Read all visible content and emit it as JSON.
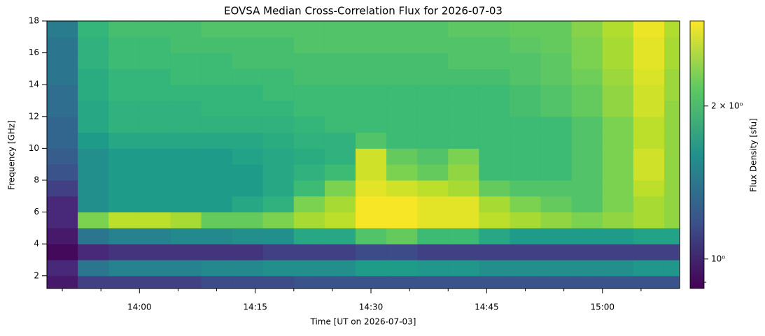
{
  "chart_data": {
    "type": "heatmap",
    "title": "EOVSA Median Cross-Correlation Flux for 2026-07-03",
    "xlabel": "Time [UT on 2026-07-03]",
    "ylabel": "Frequency [GHz]",
    "colorbar_label": "Flux Density [sfu]",
    "colormap": "viridis",
    "cscale": "log",
    "xlim": [
      "13:48",
      "15:10"
    ],
    "ylim": [
      1.2,
      18
    ],
    "xticks": [
      "14:00",
      "14:15",
      "14:30",
      "14:45",
      "15:00"
    ],
    "xminorticks": [
      "13:50",
      "13:55",
      "14:05",
      "14:10",
      "14:20",
      "14:25",
      "14:35",
      "14:40",
      "14:50",
      "14:55",
      "15:05"
    ],
    "yticks": [
      2,
      4,
      6,
      8,
      10,
      12,
      14,
      16,
      18
    ],
    "clim": [
      0.875,
      2.94
    ],
    "cticks": [
      {
        "value": 1,
        "label": "10⁰"
      },
      {
        "value": 2,
        "label": "2 × 10⁰"
      }
    ],
    "cminorticks": [
      0.9
    ],
    "x": [
      "13:48",
      "13:52",
      "13:56",
      "14:00",
      "14:04",
      "14:08",
      "14:12",
      "14:16",
      "14:20",
      "14:24",
      "14:28",
      "14:32",
      "14:36",
      "14:40",
      "14:44",
      "14:48",
      "14:52",
      "14:56",
      "15:00",
      "15:04",
      "15:08"
    ],
    "y": [
      1.2,
      2,
      3,
      4,
      5,
      6,
      7,
      8,
      9,
      10,
      11,
      12,
      13,
      14,
      15,
      16,
      17
    ],
    "z": [
      [
        0.95,
        1.1,
        1.1,
        1.1,
        1.1,
        1.15,
        1.15,
        1.15,
        1.2,
        1.2,
        1.2,
        1.2,
        1.2,
        1.2,
        1.2,
        1.2,
        1.2,
        1.2,
        1.2,
        1.2,
        1.2
      ],
      [
        1.0,
        1.4,
        1.5,
        1.5,
        1.5,
        1.55,
        1.55,
        1.6,
        1.6,
        1.6,
        1.7,
        1.7,
        1.65,
        1.65,
        1.6,
        1.6,
        1.6,
        1.6,
        1.6,
        1.65,
        1.65
      ],
      [
        0.9,
        1.0,
        1.05,
        1.05,
        1.05,
        1.05,
        1.05,
        1.1,
        1.1,
        1.1,
        1.15,
        1.15,
        1.1,
        1.1,
        1.1,
        1.1,
        1.1,
        1.1,
        1.1,
        1.1,
        1.1
      ],
      [
        0.95,
        1.4,
        1.5,
        1.5,
        1.55,
        1.55,
        1.6,
        1.6,
        1.8,
        1.8,
        2.1,
        2.2,
        2.0,
        2.0,
        1.8,
        1.7,
        1.7,
        1.7,
        1.7,
        1.75,
        1.75
      ],
      [
        1.0,
        2.3,
        2.6,
        2.6,
        2.5,
        2.2,
        2.2,
        2.3,
        2.5,
        2.6,
        2.9,
        2.9,
        2.8,
        2.8,
        2.6,
        2.5,
        2.4,
        2.3,
        2.4,
        2.5,
        2.4
      ],
      [
        1.0,
        1.6,
        1.7,
        1.7,
        1.7,
        1.7,
        1.8,
        1.9,
        2.3,
        2.5,
        2.9,
        2.9,
        2.8,
        2.8,
        2.5,
        2.3,
        2.2,
        2.1,
        2.3,
        2.5,
        2.4
      ],
      [
        1.1,
        1.6,
        1.7,
        1.7,
        1.7,
        1.7,
        1.7,
        1.8,
        2.0,
        2.3,
        2.8,
        2.7,
        2.6,
        2.5,
        2.2,
        2.1,
        2.1,
        2.1,
        2.3,
        2.6,
        2.4
      ],
      [
        1.2,
        1.6,
        1.7,
        1.7,
        1.7,
        1.7,
        1.7,
        1.8,
        1.9,
        2.0,
        2.7,
        2.3,
        2.2,
        2.4,
        2.0,
        2.0,
        2.0,
        2.1,
        2.3,
        2.7,
        2.4
      ],
      [
        1.25,
        1.6,
        1.7,
        1.7,
        1.7,
        1.7,
        1.75,
        1.8,
        1.85,
        1.9,
        2.7,
        2.2,
        2.1,
        2.3,
        2.0,
        2.0,
        2.0,
        2.1,
        2.3,
        2.7,
        2.4
      ],
      [
        1.3,
        1.7,
        1.8,
        1.8,
        1.8,
        1.8,
        1.8,
        1.85,
        1.9,
        1.9,
        2.1,
        2.0,
        2.0,
        2.0,
        2.0,
        2.0,
        2.0,
        2.1,
        2.3,
        2.6,
        2.4
      ],
      [
        1.3,
        1.8,
        1.9,
        1.9,
        1.9,
        1.9,
        1.9,
        1.9,
        1.95,
        2.0,
        2.0,
        2.0,
        2.0,
        2.0,
        2.0,
        2.0,
        2.0,
        2.1,
        2.3,
        2.6,
        2.4
      ],
      [
        1.35,
        1.8,
        1.9,
        1.9,
        1.9,
        1.95,
        1.95,
        1.95,
        2.0,
        2.0,
        2.0,
        2.0,
        2.0,
        2.0,
        2.0,
        2.05,
        2.1,
        2.2,
        2.4,
        2.7,
        2.4
      ],
      [
        1.35,
        1.85,
        1.95,
        1.95,
        1.95,
        1.95,
        1.95,
        2.0,
        2.0,
        2.0,
        2.0,
        2.0,
        2.0,
        2.0,
        2.0,
        2.05,
        2.1,
        2.2,
        2.4,
        2.7,
        2.45
      ],
      [
        1.4,
        1.85,
        1.95,
        1.95,
        2.0,
        2.0,
        2.0,
        2.0,
        2.05,
        2.05,
        2.05,
        2.05,
        2.05,
        2.05,
        2.05,
        2.1,
        2.15,
        2.25,
        2.45,
        2.75,
        2.45
      ],
      [
        1.4,
        1.9,
        2.0,
        2.0,
        2.0,
        2.0,
        2.05,
        2.05,
        2.05,
        2.05,
        2.05,
        2.05,
        2.05,
        2.1,
        2.1,
        2.1,
        2.15,
        2.3,
        2.5,
        2.8,
        2.5
      ],
      [
        1.4,
        1.9,
        2.0,
        2.0,
        2.05,
        2.05,
        2.05,
        2.05,
        2.1,
        2.1,
        2.1,
        2.1,
        2.1,
        2.1,
        2.1,
        2.15,
        2.2,
        2.3,
        2.5,
        2.8,
        2.5
      ],
      [
        1.45,
        1.95,
        2.05,
        2.05,
        2.05,
        2.1,
        2.1,
        2.1,
        2.1,
        2.1,
        2.1,
        2.1,
        2.1,
        2.15,
        2.15,
        2.2,
        2.2,
        2.35,
        2.55,
        2.85,
        2.55
      ]
    ]
  }
}
